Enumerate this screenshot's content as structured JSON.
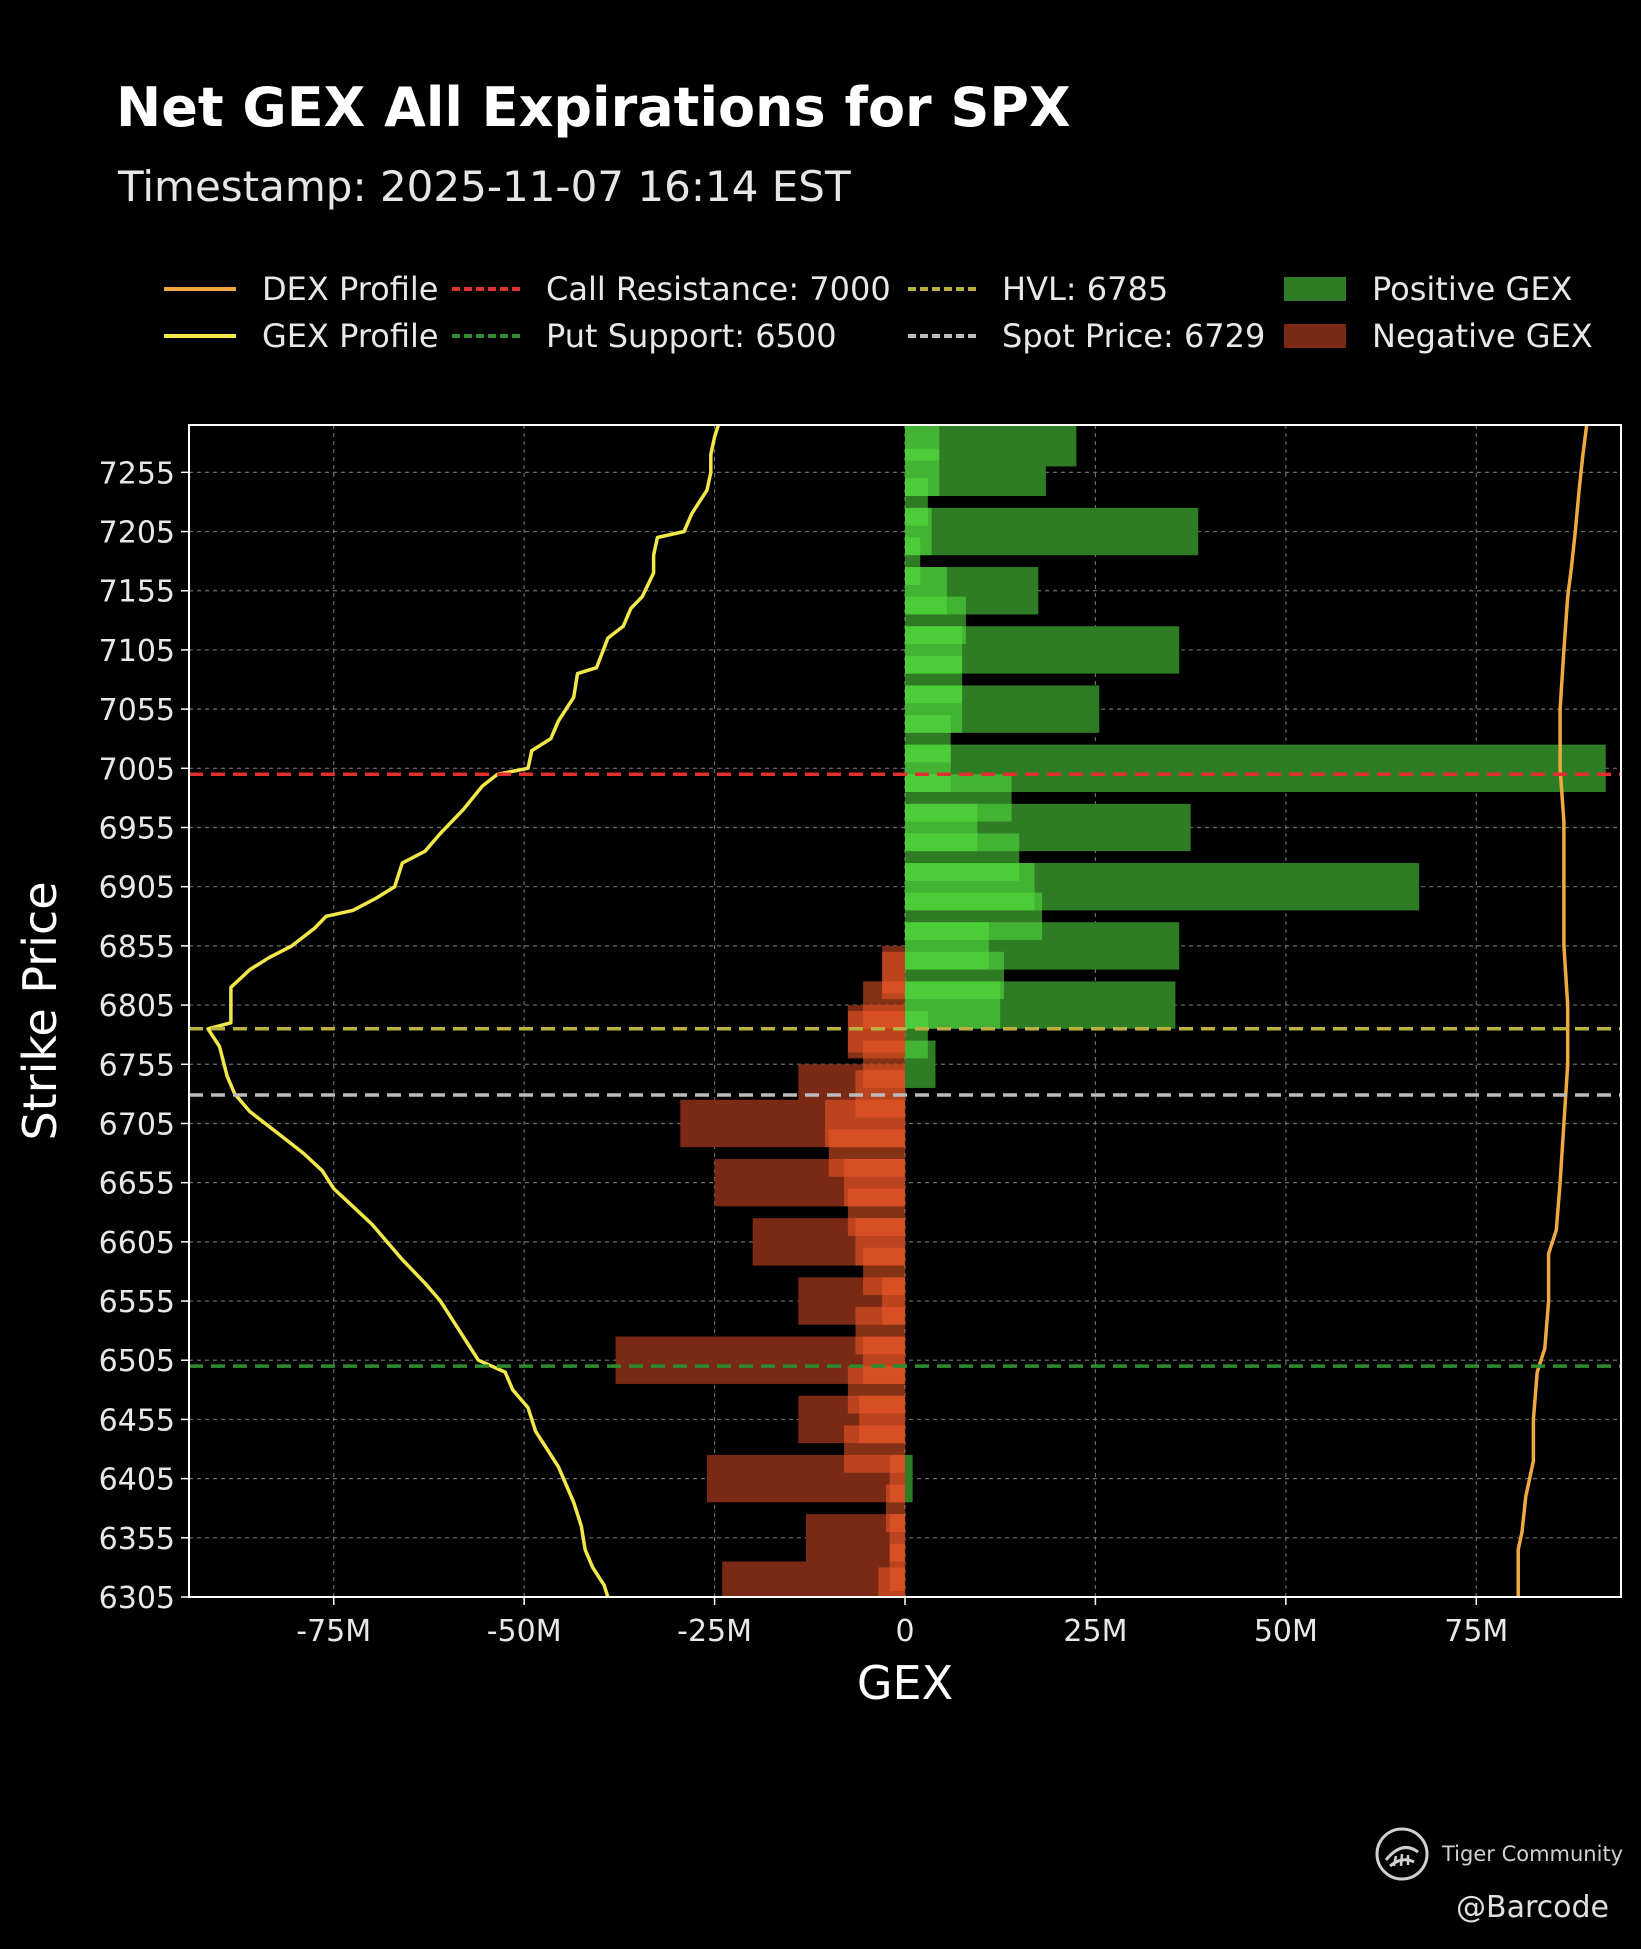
{
  "title": "Net GEX All Expirations for SPX",
  "subtitle": "Timestamp: 2025-11-07 16:14 EST",
  "legend": {
    "dex": "DEX Profile",
    "gex": "GEX Profile",
    "call": "Call Resistance: 7000",
    "put": "Put Support: 6500",
    "hvl": "HVL: 6785",
    "spot": "Spot Price: 6729",
    "pos": "Positive GEX",
    "neg": "Negative GEX"
  },
  "colors": {
    "background": "#000000",
    "positive_bar": "#2e7d25",
    "positive_bar_highlight": "#55e040",
    "negative_bar": "#7a2a14",
    "negative_bar_highlight": "#f05a28",
    "gex_profile": "#f2e84a",
    "dex_profile": "#f0a840",
    "call_resistance": "#e03030",
    "put_support": "#2e8b2e",
    "hvl": "#b8b040",
    "spot": "#bbbbbb",
    "grid": "#888888",
    "frame": "#ffffff"
  },
  "chart_data": {
    "type": "bar",
    "orientation": "horizontal",
    "title": "Net GEX All Expirations for SPX",
    "subtitle": "Timestamp: 2025-11-07 16:14 EST",
    "xlabel": "GEX",
    "ylabel": "Strike Price",
    "xlim": [
      -94,
      94
    ],
    "ylim": [
      6305,
      7295
    ],
    "x_ticks": [
      -75,
      -50,
      -25,
      0,
      25,
      50,
      75
    ],
    "x_tick_labels": [
      "-75M",
      "-50M",
      "-25M",
      "0",
      "25M",
      "50M",
      "75M"
    ],
    "y_ticks": [
      6305,
      6355,
      6405,
      6455,
      6505,
      6555,
      6605,
      6655,
      6705,
      6755,
      6805,
      6855,
      6905,
      6955,
      7005,
      7055,
      7105,
      7155,
      7205,
      7255
    ],
    "grid": true,
    "legend_position": "top",
    "unit": "M",
    "bar_height": 40,
    "series": [
      {
        "name": "Positive GEX",
        "points": [
          {
            "y": 7280,
            "x": 22.5
          },
          {
            "y": 7255,
            "x": 18.5
          },
          {
            "y": 7205,
            "x": 38.5
          },
          {
            "y": 7155,
            "x": 17.5
          },
          {
            "y": 7105,
            "x": 36
          },
          {
            "y": 7055,
            "x": 25.5
          },
          {
            "y": 7005,
            "x": 92
          },
          {
            "y": 6955,
            "x": 37.5
          },
          {
            "y": 6905,
            "x": 67.5
          },
          {
            "y": 6855,
            "x": 36
          },
          {
            "y": 6805,
            "x": 35.5
          },
          {
            "y": 6755,
            "x": 4
          },
          {
            "y": 6405,
            "x": 1
          }
        ]
      },
      {
        "name": "Negative GEX",
        "points": [
          {
            "y": 6835,
            "x": -3
          },
          {
            "y": 6785,
            "x": -7.5
          },
          {
            "y": 6735,
            "x": -14
          },
          {
            "y": 6705,
            "x": -29.5
          },
          {
            "y": 6655,
            "x": -25
          },
          {
            "y": 6605,
            "x": -20
          },
          {
            "y": 6555,
            "x": -14
          },
          {
            "y": 6505,
            "x": -38
          },
          {
            "y": 6455,
            "x": -14
          },
          {
            "y": 6405,
            "x": -26
          },
          {
            "y": 6355,
            "x": -13
          },
          {
            "y": 6315,
            "x": -24
          }
        ]
      }
    ],
    "highlight_bars": {
      "positive": [
        {
          "y": 7285,
          "x": 4.5
        },
        {
          "y": 7255,
          "x": 4.5
        },
        {
          "y": 7230,
          "x": 3
        },
        {
          "y": 7205,
          "x": 3.5
        },
        {
          "y": 7180,
          "x": 2
        },
        {
          "y": 7155,
          "x": 5.5
        },
        {
          "y": 7130,
          "x": 8
        },
        {
          "y": 7105,
          "x": 7.5
        },
        {
          "y": 7080,
          "x": 7.5
        },
        {
          "y": 7055,
          "x": 7.5
        },
        {
          "y": 7030,
          "x": 6
        },
        {
          "y": 7005,
          "x": 6
        },
        {
          "y": 6980,
          "x": 14
        },
        {
          "y": 6955,
          "x": 9.5
        },
        {
          "y": 6930,
          "x": 15
        },
        {
          "y": 6905,
          "x": 17
        },
        {
          "y": 6880,
          "x": 18
        },
        {
          "y": 6855,
          "x": 11
        },
        {
          "y": 6830,
          "x": 13
        },
        {
          "y": 6805,
          "x": 12.5
        },
        {
          "y": 6780,
          "x": 3
        }
      ],
      "negative": [
        {
          "y": 6830,
          "x": -3
        },
        {
          "y": 6805,
          "x": -5.5
        },
        {
          "y": 6780,
          "x": -7.5
        },
        {
          "y": 6755,
          "x": -5.5
        },
        {
          "y": 6730,
          "x": -6.5
        },
        {
          "y": 6705,
          "x": -10.5
        },
        {
          "y": 6680,
          "x": -10
        },
        {
          "y": 6655,
          "x": -8
        },
        {
          "y": 6630,
          "x": -7.5
        },
        {
          "y": 6605,
          "x": -6.5
        },
        {
          "y": 6580,
          "x": -5.5
        },
        {
          "y": 6555,
          "x": -3
        },
        {
          "y": 6530,
          "x": -6.5
        },
        {
          "y": 6505,
          "x": -5.5
        },
        {
          "y": 6480,
          "x": -7.5
        },
        {
          "y": 6455,
          "x": -6
        },
        {
          "y": 6430,
          "x": -8
        },
        {
          "y": 6405,
          "x": -2
        },
        {
          "y": 6380,
          "x": -2.5
        },
        {
          "y": 6355,
          "x": -2
        },
        {
          "y": 6330,
          "x": -2
        },
        {
          "y": 6310,
          "x": -3.5
        }
      ]
    },
    "gex_profile": {
      "name": "GEX Profile",
      "points": [
        [
          -24.5,
          7295
        ],
        [
          -25,
          7285
        ],
        [
          -25.5,
          7270
        ],
        [
          -25.5,
          7255
        ],
        [
          -26,
          7240
        ],
        [
          -28,
          7220
        ],
        [
          -29,
          7205
        ],
        [
          -32.5,
          7200
        ],
        [
          -33,
          7185
        ],
        [
          -33,
          7170
        ],
        [
          -34.5,
          7150
        ],
        [
          -36,
          7140
        ],
        [
          -37,
          7125
        ],
        [
          -39,
          7115
        ],
        [
          -40.5,
          7090
        ],
        [
          -43,
          7085
        ],
        [
          -43.5,
          7065
        ],
        [
          -45.5,
          7045
        ],
        [
          -46.5,
          7030
        ],
        [
          -49,
          7020
        ],
        [
          -49.5,
          7005
        ],
        [
          -53.5,
          7000
        ],
        [
          -55.5,
          6990
        ],
        [
          -58,
          6970
        ],
        [
          -61,
          6950
        ],
        [
          -63,
          6935
        ],
        [
          -66,
          6925
        ],
        [
          -67,
          6905
        ],
        [
          -69.5,
          6895
        ],
        [
          -72.5,
          6885
        ],
        [
          -76,
          6880
        ],
        [
          -77.5,
          6870
        ],
        [
          -80.5,
          6855
        ],
        [
          -83.5,
          6845
        ],
        [
          -86,
          6835
        ],
        [
          -88.5,
          6820
        ],
        [
          -88.5,
          6790
        ],
        [
          -91.5,
          6785
        ],
        [
          -90,
          6770
        ],
        [
          -89,
          6745
        ],
        [
          -88,
          6730
        ],
        [
          -86,
          6715
        ],
        [
          -84,
          6705
        ],
        [
          -82,
          6695
        ],
        [
          -79,
          6680
        ],
        [
          -76.5,
          6665
        ],
        [
          -75,
          6650
        ],
        [
          -72.5,
          6635
        ],
        [
          -70,
          6620
        ],
        [
          -68,
          6605
        ],
        [
          -66,
          6590
        ],
        [
          -63,
          6570
        ],
        [
          -61,
          6555
        ],
        [
          -59.5,
          6540
        ],
        [
          -57.5,
          6520
        ],
        [
          -56,
          6505
        ],
        [
          -52.5,
          6495
        ],
        [
          -51.5,
          6480
        ],
        [
          -49.5,
          6465
        ],
        [
          -48.5,
          6445
        ],
        [
          -47,
          6430
        ],
        [
          -45.5,
          6415
        ],
        [
          -44.5,
          6400
        ],
        [
          -43.5,
          6385
        ],
        [
          -42.5,
          6365
        ],
        [
          -42,
          6345
        ],
        [
          -41,
          6330
        ],
        [
          -39.5,
          6315
        ],
        [
          -39,
          6305
        ]
      ]
    },
    "dex_profile": {
      "name": "DEX Profile",
      "points": [
        [
          89.5,
          7295
        ],
        [
          89,
          7270
        ],
        [
          88.5,
          7240
        ],
        [
          88,
          7205
        ],
        [
          87.5,
          7175
        ],
        [
          87,
          7150
        ],
        [
          86.5,
          7105
        ],
        [
          86,
          7055
        ],
        [
          86,
          7005
        ],
        [
          86.5,
          6960
        ],
        [
          86.5,
          6905
        ],
        [
          86.5,
          6855
        ],
        [
          87,
          6805
        ],
        [
          87,
          6755
        ],
        [
          86.5,
          6705
        ],
        [
          86,
          6655
        ],
        [
          85.5,
          6615
        ],
        [
          84.5,
          6595
        ],
        [
          84.5,
          6555
        ],
        [
          84,
          6515
        ],
        [
          83,
          6495
        ],
        [
          82.5,
          6455
        ],
        [
          82.5,
          6420
        ],
        [
          81.5,
          6390
        ],
        [
          81,
          6360
        ],
        [
          80.5,
          6345
        ],
        [
          80.5,
          6305
        ]
      ]
    },
    "reference_lines": [
      {
        "name": "Call Resistance",
        "y": 7000
      },
      {
        "name": "HVL",
        "y": 6785
      },
      {
        "name": "Spot Price",
        "y": 6729
      },
      {
        "name": "Put Support",
        "y": 6500
      }
    ]
  },
  "watermark": {
    "brand": "Tiger Community",
    "handle": "@Barcode"
  }
}
